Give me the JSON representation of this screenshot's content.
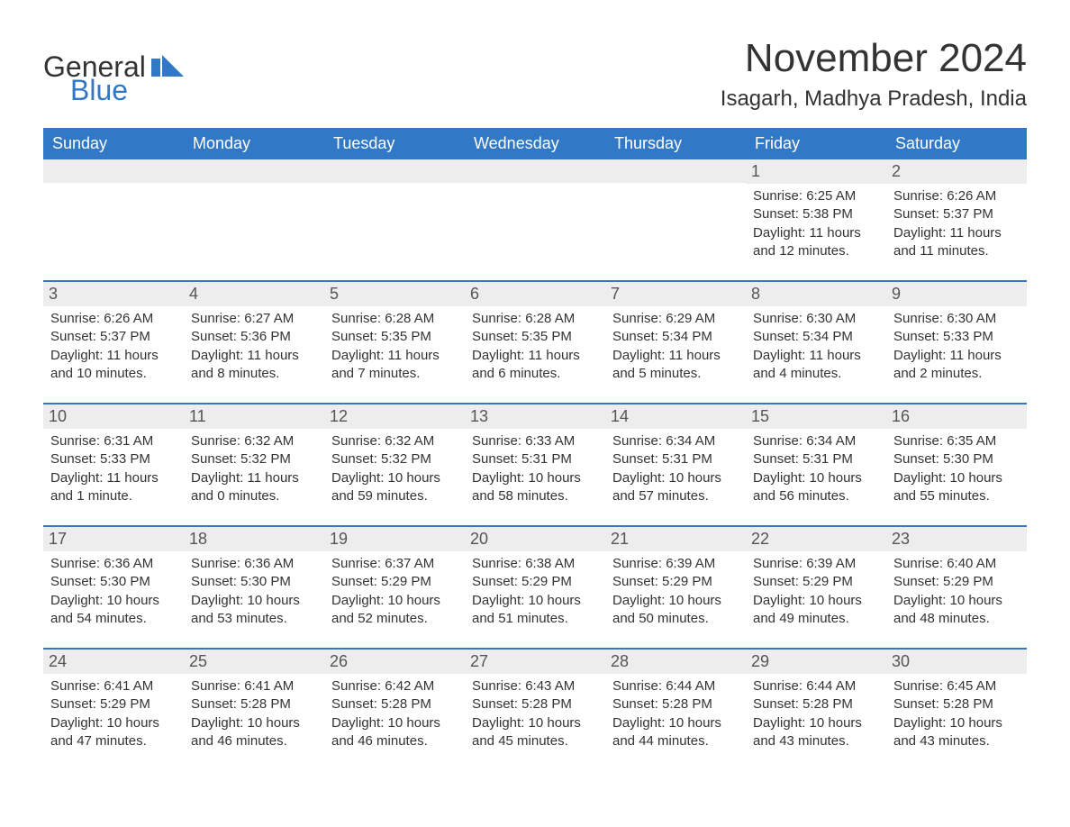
{
  "brand": {
    "text1": "General",
    "text2": "Blue",
    "icon_color": "#3178c6"
  },
  "title": "November 2024",
  "location": "Isagarh, Madhya Pradesh, India",
  "colors": {
    "header_bg": "#3178c6",
    "header_text": "#ffffff",
    "row_border": "#3178c6",
    "daynum_bg": "#ededed",
    "body_text": "#333333",
    "background": "#ffffff"
  },
  "typography": {
    "title_fontsize": 44,
    "location_fontsize": 24,
    "dayhead_fontsize": 18,
    "daynum_fontsize": 18,
    "body_fontsize": 15
  },
  "day_headers": [
    "Sunday",
    "Monday",
    "Tuesday",
    "Wednesday",
    "Thursday",
    "Friday",
    "Saturday"
  ],
  "weeks": [
    [
      null,
      null,
      null,
      null,
      null,
      {
        "n": "1",
        "sunrise": "6:25 AM",
        "sunset": "5:38 PM",
        "daylight": "11 hours and 12 minutes."
      },
      {
        "n": "2",
        "sunrise": "6:26 AM",
        "sunset": "5:37 PM",
        "daylight": "11 hours and 11 minutes."
      }
    ],
    [
      {
        "n": "3",
        "sunrise": "6:26 AM",
        "sunset": "5:37 PM",
        "daylight": "11 hours and 10 minutes."
      },
      {
        "n": "4",
        "sunrise": "6:27 AM",
        "sunset": "5:36 PM",
        "daylight": "11 hours and 8 minutes."
      },
      {
        "n": "5",
        "sunrise": "6:28 AM",
        "sunset": "5:35 PM",
        "daylight": "11 hours and 7 minutes."
      },
      {
        "n": "6",
        "sunrise": "6:28 AM",
        "sunset": "5:35 PM",
        "daylight": "11 hours and 6 minutes."
      },
      {
        "n": "7",
        "sunrise": "6:29 AM",
        "sunset": "5:34 PM",
        "daylight": "11 hours and 5 minutes."
      },
      {
        "n": "8",
        "sunrise": "6:30 AM",
        "sunset": "5:34 PM",
        "daylight": "11 hours and 4 minutes."
      },
      {
        "n": "9",
        "sunrise": "6:30 AM",
        "sunset": "5:33 PM",
        "daylight": "11 hours and 2 minutes."
      }
    ],
    [
      {
        "n": "10",
        "sunrise": "6:31 AM",
        "sunset": "5:33 PM",
        "daylight": "11 hours and 1 minute."
      },
      {
        "n": "11",
        "sunrise": "6:32 AM",
        "sunset": "5:32 PM",
        "daylight": "11 hours and 0 minutes."
      },
      {
        "n": "12",
        "sunrise": "6:32 AM",
        "sunset": "5:32 PM",
        "daylight": "10 hours and 59 minutes."
      },
      {
        "n": "13",
        "sunrise": "6:33 AM",
        "sunset": "5:31 PM",
        "daylight": "10 hours and 58 minutes."
      },
      {
        "n": "14",
        "sunrise": "6:34 AM",
        "sunset": "5:31 PM",
        "daylight": "10 hours and 57 minutes."
      },
      {
        "n": "15",
        "sunrise": "6:34 AM",
        "sunset": "5:31 PM",
        "daylight": "10 hours and 56 minutes."
      },
      {
        "n": "16",
        "sunrise": "6:35 AM",
        "sunset": "5:30 PM",
        "daylight": "10 hours and 55 minutes."
      }
    ],
    [
      {
        "n": "17",
        "sunrise": "6:36 AM",
        "sunset": "5:30 PM",
        "daylight": "10 hours and 54 minutes."
      },
      {
        "n": "18",
        "sunrise": "6:36 AM",
        "sunset": "5:30 PM",
        "daylight": "10 hours and 53 minutes."
      },
      {
        "n": "19",
        "sunrise": "6:37 AM",
        "sunset": "5:29 PM",
        "daylight": "10 hours and 52 minutes."
      },
      {
        "n": "20",
        "sunrise": "6:38 AM",
        "sunset": "5:29 PM",
        "daylight": "10 hours and 51 minutes."
      },
      {
        "n": "21",
        "sunrise": "6:39 AM",
        "sunset": "5:29 PM",
        "daylight": "10 hours and 50 minutes."
      },
      {
        "n": "22",
        "sunrise": "6:39 AM",
        "sunset": "5:29 PM",
        "daylight": "10 hours and 49 minutes."
      },
      {
        "n": "23",
        "sunrise": "6:40 AM",
        "sunset": "5:29 PM",
        "daylight": "10 hours and 48 minutes."
      }
    ],
    [
      {
        "n": "24",
        "sunrise": "6:41 AM",
        "sunset": "5:29 PM",
        "daylight": "10 hours and 47 minutes."
      },
      {
        "n": "25",
        "sunrise": "6:41 AM",
        "sunset": "5:28 PM",
        "daylight": "10 hours and 46 minutes."
      },
      {
        "n": "26",
        "sunrise": "6:42 AM",
        "sunset": "5:28 PM",
        "daylight": "10 hours and 46 minutes."
      },
      {
        "n": "27",
        "sunrise": "6:43 AM",
        "sunset": "5:28 PM",
        "daylight": "10 hours and 45 minutes."
      },
      {
        "n": "28",
        "sunrise": "6:44 AM",
        "sunset": "5:28 PM",
        "daylight": "10 hours and 44 minutes."
      },
      {
        "n": "29",
        "sunrise": "6:44 AM",
        "sunset": "5:28 PM",
        "daylight": "10 hours and 43 minutes."
      },
      {
        "n": "30",
        "sunrise": "6:45 AM",
        "sunset": "5:28 PM",
        "daylight": "10 hours and 43 minutes."
      }
    ]
  ],
  "labels": {
    "sunrise": "Sunrise: ",
    "sunset": "Sunset: ",
    "daylight": "Daylight: "
  }
}
